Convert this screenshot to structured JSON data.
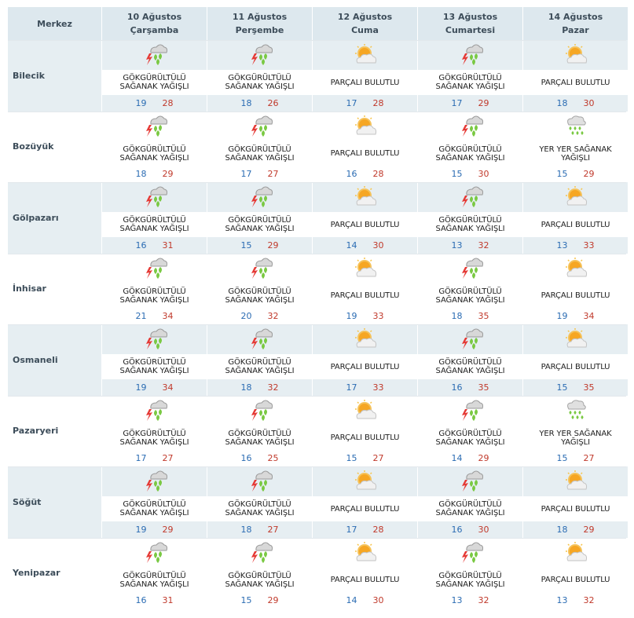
{
  "header": {
    "corner_label": "Merkez",
    "days": [
      {
        "date": "10 Ağustos",
        "weekday": "Çarşamba"
      },
      {
        "date": "11 Ağustos",
        "weekday": "Perşembe"
      },
      {
        "date": "12 Ağustos",
        "weekday": "Cuma"
      },
      {
        "date": "13 Ağustos",
        "weekday": "Cumartesi"
      },
      {
        "date": "14 Ağustos",
        "weekday": "Pazar"
      }
    ]
  },
  "rows": [
    {
      "city": "Bilecik",
      "days": [
        {
          "icon": "thunderstorm-icon",
          "desc": "GÖKGÜRÜLTÜLÜ SAĞANAK YAĞIŞLI",
          "low": "19",
          "high": "28"
        },
        {
          "icon": "thunderstorm-icon",
          "desc": "GÖKGÜRÜLTÜLÜ SAĞANAK YAĞIŞLI",
          "low": "18",
          "high": "26"
        },
        {
          "icon": "partly-cloudy-icon",
          "desc": "PARÇALI BULUTLU",
          "low": "17",
          "high": "28"
        },
        {
          "icon": "thunderstorm-icon",
          "desc": "GÖKGÜRÜLTÜLÜ SAĞANAK YAĞIŞLI",
          "low": "17",
          "high": "29"
        },
        {
          "icon": "partly-cloudy-icon",
          "desc": "PARÇALI BULUTLU",
          "low": "18",
          "high": "30"
        }
      ]
    },
    {
      "city": "Bozüyük",
      "days": [
        {
          "icon": "thunderstorm-icon",
          "desc": "GÖKGÜRÜLTÜLÜ SAĞANAK YAĞIŞLI",
          "low": "18",
          "high": "29"
        },
        {
          "icon": "thunderstorm-icon",
          "desc": "GÖKGÜRÜLTÜLÜ SAĞANAK YAĞIŞLI",
          "low": "17",
          "high": "27"
        },
        {
          "icon": "partly-cloudy-icon",
          "desc": "PARÇALI BULUTLU",
          "low": "16",
          "high": "28"
        },
        {
          "icon": "thunderstorm-icon",
          "desc": "GÖKGÜRÜLTÜLÜ SAĞANAK YAĞIŞLI",
          "low": "15",
          "high": "30"
        },
        {
          "icon": "showers-icon",
          "desc": "YER YER SAĞANAK YAĞIŞLI",
          "low": "15",
          "high": "29"
        }
      ]
    },
    {
      "city": "Gölpazarı",
      "days": [
        {
          "icon": "thunderstorm-icon",
          "desc": "GÖKGÜRÜLTÜLÜ SAĞANAK YAĞIŞLI",
          "low": "16",
          "high": "31"
        },
        {
          "icon": "thunderstorm-icon",
          "desc": "GÖKGÜRÜLTÜLÜ SAĞANAK YAĞIŞLI",
          "low": "15",
          "high": "29"
        },
        {
          "icon": "partly-cloudy-icon",
          "desc": "PARÇALI BULUTLU",
          "low": "14",
          "high": "30"
        },
        {
          "icon": "thunderstorm-icon",
          "desc": "GÖKGÜRÜLTÜLÜ SAĞANAK YAĞIŞLI",
          "low": "13",
          "high": "32"
        },
        {
          "icon": "partly-cloudy-icon",
          "desc": "PARÇALI BULUTLU",
          "low": "13",
          "high": "33"
        }
      ]
    },
    {
      "city": "İnhisar",
      "days": [
        {
          "icon": "thunderstorm-icon",
          "desc": "GÖKGÜRÜLTÜLÜ SAĞANAK YAĞIŞLI",
          "low": "21",
          "high": "34"
        },
        {
          "icon": "thunderstorm-icon",
          "desc": "GÖKGÜRÜLTÜLÜ SAĞANAK YAĞIŞLI",
          "low": "20",
          "high": "32"
        },
        {
          "icon": "partly-cloudy-icon",
          "desc": "PARÇALI BULUTLU",
          "low": "19",
          "high": "33"
        },
        {
          "icon": "thunderstorm-icon",
          "desc": "GÖKGÜRÜLTÜLÜ SAĞANAK YAĞIŞLI",
          "low": "18",
          "high": "35"
        },
        {
          "icon": "partly-cloudy-icon",
          "desc": "PARÇALI BULUTLU",
          "low": "19",
          "high": "34"
        }
      ]
    },
    {
      "city": "Osmaneli",
      "days": [
        {
          "icon": "thunderstorm-icon",
          "desc": "GÖKGÜRÜLTÜLÜ SAĞANAK YAĞIŞLI",
          "low": "19",
          "high": "34"
        },
        {
          "icon": "thunderstorm-icon",
          "desc": "GÖKGÜRÜLTÜLÜ SAĞANAK YAĞIŞLI",
          "low": "18",
          "high": "32"
        },
        {
          "icon": "partly-cloudy-icon",
          "desc": "PARÇALI BULUTLU",
          "low": "17",
          "high": "33"
        },
        {
          "icon": "thunderstorm-icon",
          "desc": "GÖKGÜRÜLTÜLÜ SAĞANAK YAĞIŞLI",
          "low": "16",
          "high": "35"
        },
        {
          "icon": "partly-cloudy-icon",
          "desc": "PARÇALI BULUTLU",
          "low": "15",
          "high": "35"
        }
      ]
    },
    {
      "city": "Pazaryeri",
      "days": [
        {
          "icon": "thunderstorm-icon",
          "desc": "GÖKGÜRÜLTÜLÜ SAĞANAK YAĞIŞLI",
          "low": "17",
          "high": "27"
        },
        {
          "icon": "thunderstorm-icon",
          "desc": "GÖKGÜRÜLTÜLÜ SAĞANAK YAĞIŞLI",
          "low": "16",
          "high": "25"
        },
        {
          "icon": "partly-cloudy-icon",
          "desc": "PARÇALI BULUTLU",
          "low": "15",
          "high": "27"
        },
        {
          "icon": "thunderstorm-icon",
          "desc": "GÖKGÜRÜLTÜLÜ SAĞANAK YAĞIŞLI",
          "low": "14",
          "high": "29"
        },
        {
          "icon": "showers-icon",
          "desc": "YER YER SAĞANAK YAĞIŞLI",
          "low": "15",
          "high": "27"
        }
      ]
    },
    {
      "city": "Söğüt",
      "days": [
        {
          "icon": "thunderstorm-icon",
          "desc": "GÖKGÜRÜLTÜLÜ SAĞANAK YAĞIŞLI",
          "low": "19",
          "high": "29"
        },
        {
          "icon": "thunderstorm-icon",
          "desc": "GÖKGÜRÜLTÜLÜ SAĞANAK YAĞIŞLI",
          "low": "18",
          "high": "27"
        },
        {
          "icon": "partly-cloudy-icon",
          "desc": "PARÇALI BULUTLU",
          "low": "17",
          "high": "28"
        },
        {
          "icon": "thunderstorm-icon",
          "desc": "GÖKGÜRÜLTÜLÜ SAĞANAK YAĞIŞLI",
          "low": "16",
          "high": "30"
        },
        {
          "icon": "partly-cloudy-icon",
          "desc": "PARÇALI BULUTLU",
          "low": "18",
          "high": "29"
        }
      ]
    },
    {
      "city": "Yenipazar",
      "days": [
        {
          "icon": "thunderstorm-icon",
          "desc": "GÖKGÜRÜLTÜLÜ SAĞANAK YAĞIŞLI",
          "low": "16",
          "high": "31"
        },
        {
          "icon": "thunderstorm-icon",
          "desc": "GÖKGÜRÜLTÜLÜ SAĞANAK YAĞIŞLI",
          "low": "15",
          "high": "29"
        },
        {
          "icon": "partly-cloudy-icon",
          "desc": "PARÇALI BULUTLU",
          "low": "14",
          "high": "30"
        },
        {
          "icon": "thunderstorm-icon",
          "desc": "GÖKGÜRÜLTÜLÜ SAĞANAK YAĞIŞLI",
          "low": "13",
          "high": "32"
        },
        {
          "icon": "partly-cloudy-icon",
          "desc": "PARÇALI BULUTLU",
          "low": "13",
          "high": "32"
        }
      ]
    }
  ],
  "colors": {
    "header_bg": "#dde8ee",
    "shade_bg": "#e6eef2",
    "low_temp": "#2b6cb3",
    "high_temp": "#c0392b"
  }
}
